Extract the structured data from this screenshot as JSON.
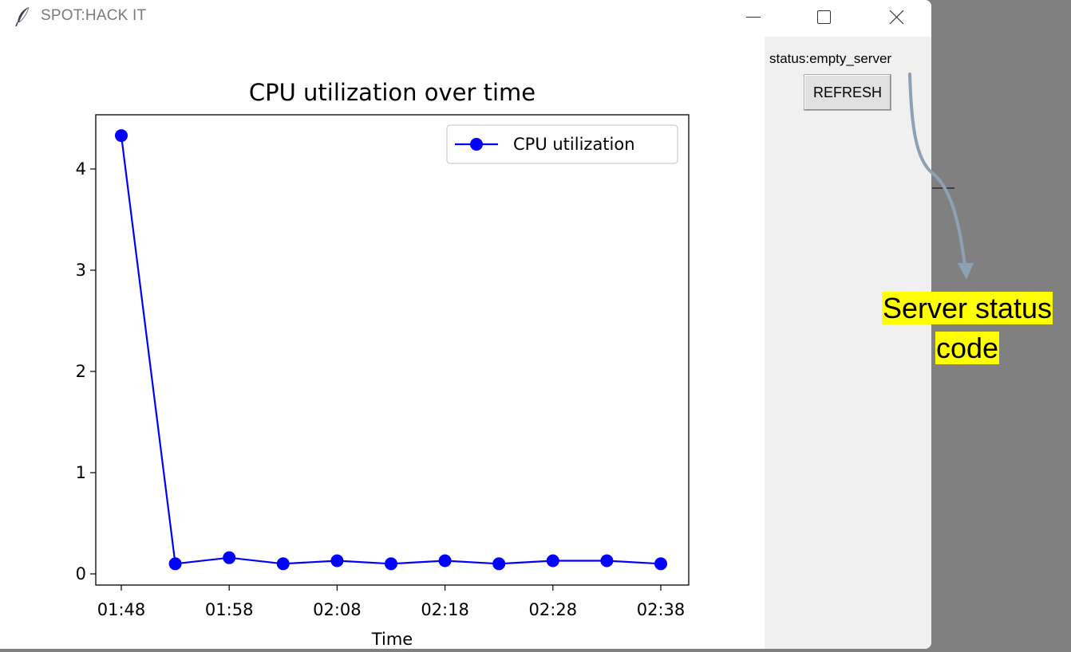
{
  "window": {
    "title": "SPOT:HACK IT",
    "icon": "feather-icon",
    "controls": [
      "minimize-icon",
      "maximize-icon",
      "close-icon"
    ]
  },
  "side_panel": {
    "status_text": "status:empty_server",
    "refresh_label": "REFRESH"
  },
  "annotation": {
    "line1": "Server status",
    "line2": "code",
    "arrow_color": "#8ea0b4",
    "highlight_color": "#ffff00"
  },
  "chart_data": {
    "type": "line",
    "title": "CPU utilization over time",
    "xlabel": "Time",
    "ylabel": "",
    "x": [
      "01:48",
      "01:53",
      "01:58",
      "02:03",
      "02:08",
      "02:13",
      "02:18",
      "02:23",
      "02:28",
      "02:33",
      "02:38"
    ],
    "series": [
      {
        "name": "CPU utilization",
        "color": "#0000ff",
        "marker": "circle",
        "values": [
          4.33,
          0.1,
          0.16,
          0.1,
          0.13,
          0.1,
          0.13,
          0.1,
          0.13,
          0.13,
          0.1
        ]
      }
    ],
    "xticks": [
      "01:48",
      "01:58",
      "02:08",
      "02:18",
      "02:28",
      "02:38"
    ],
    "yticks": [
      0,
      1,
      2,
      3,
      4
    ],
    "ylim": [
      -0.11,
      4.55
    ],
    "grid": false,
    "legend": "upper right"
  }
}
